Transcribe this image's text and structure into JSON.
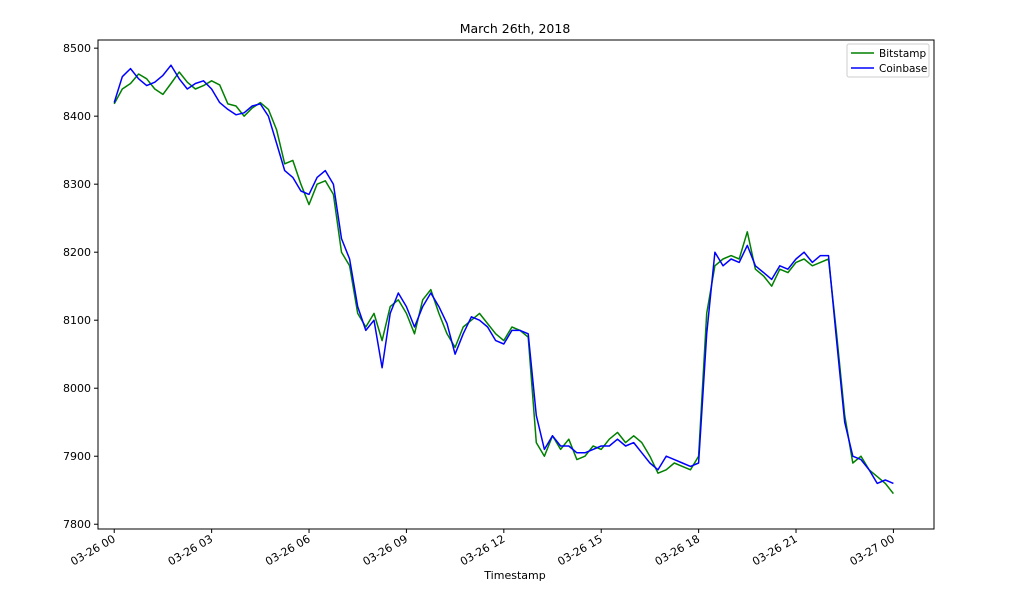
{
  "chart_data": {
    "type": "line",
    "title": "March 26th, 2018",
    "xlabel": "Timestamp",
    "ylabel": "",
    "xlim_hours": [
      -0.5,
      25.25
    ],
    "ylim": [
      7793,
      8512
    ],
    "grid": false,
    "legend_position": "top-right",
    "x_tick_hours": [
      0,
      3,
      6,
      9,
      12,
      15,
      18,
      21,
      24
    ],
    "x_tick_labels": [
      "03-26 00",
      "03-26 03",
      "03-26 06",
      "03-26 09",
      "03-26 12",
      "03-26 15",
      "03-26 18",
      "03-26 21",
      "03-27 00"
    ],
    "y_ticks": [
      7800,
      7900,
      8000,
      8100,
      8200,
      8300,
      8400,
      8500
    ],
    "series": [
      {
        "name": "Bitstamp",
        "color": "#008000",
        "x_hours": [
          0.0,
          0.25,
          0.5,
          0.75,
          1.0,
          1.25,
          1.5,
          1.75,
          2.0,
          2.25,
          2.5,
          2.75,
          3.0,
          3.25,
          3.5,
          3.75,
          4.0,
          4.25,
          4.5,
          4.75,
          5.0,
          5.25,
          5.5,
          5.75,
          6.0,
          6.25,
          6.5,
          6.75,
          7.0,
          7.25,
          7.5,
          7.75,
          8.0,
          8.25,
          8.5,
          8.75,
          9.0,
          9.25,
          9.5,
          9.75,
          10.0,
          10.25,
          10.5,
          10.75,
          11.0,
          11.25,
          11.5,
          11.75,
          12.0,
          12.25,
          12.5,
          12.75,
          13.0,
          13.25,
          13.5,
          13.75,
          14.0,
          14.25,
          14.5,
          14.75,
          15.0,
          15.25,
          15.5,
          15.75,
          16.0,
          16.25,
          16.5,
          16.75,
          17.0,
          17.25,
          17.5,
          17.75,
          18.0,
          18.25,
          18.5,
          18.75,
          19.0,
          19.25,
          19.5,
          19.75,
          20.0,
          20.25,
          20.5,
          20.75,
          21.0,
          21.25,
          21.5,
          21.75,
          22.0,
          22.25,
          22.5,
          22.75,
          23.0,
          23.25,
          23.5,
          23.75,
          24.0
        ],
        "values": [
          8418,
          8440,
          8448,
          8462,
          8455,
          8440,
          8432,
          8448,
          8465,
          8450,
          8440,
          8445,
          8452,
          8446,
          8418,
          8415,
          8400,
          8412,
          8420,
          8410,
          8380,
          8330,
          8335,
          8300,
          8270,
          8300,
          8305,
          8285,
          8200,
          8180,
          8110,
          8090,
          8110,
          8070,
          8120,
          8130,
          8110,
          8080,
          8130,
          8145,
          8110,
          8080,
          8060,
          8090,
          8100,
          8110,
          8095,
          8080,
          8070,
          8090,
          8085,
          8075,
          7920,
          7900,
          7930,
          7910,
          7925,
          7895,
          7900,
          7915,
          7910,
          7925,
          7935,
          7920,
          7930,
          7920,
          7900,
          7875,
          7880,
          7890,
          7885,
          7880,
          7900,
          8110,
          8180,
          8190,
          8195,
          8190,
          8230,
          8175,
          8165,
          8150,
          8175,
          8170,
          8185,
          8190,
          8180,
          8185,
          8190,
          8080,
          7960,
          7890,
          7900,
          7880,
          7870,
          7860,
          7845
        ]
      },
      {
        "name": "Coinbase",
        "color": "#0000ff",
        "x_hours": [
          0.0,
          0.25,
          0.5,
          0.75,
          1.0,
          1.25,
          1.5,
          1.75,
          2.0,
          2.25,
          2.5,
          2.75,
          3.0,
          3.25,
          3.5,
          3.75,
          4.0,
          4.25,
          4.5,
          4.75,
          5.0,
          5.25,
          5.5,
          5.75,
          6.0,
          6.25,
          6.5,
          6.75,
          7.0,
          7.25,
          7.5,
          7.75,
          8.0,
          8.25,
          8.5,
          8.75,
          9.0,
          9.25,
          9.5,
          9.75,
          10.0,
          10.25,
          10.5,
          10.75,
          11.0,
          11.25,
          11.5,
          11.75,
          12.0,
          12.25,
          12.5,
          12.75,
          13.0,
          13.25,
          13.5,
          13.75,
          14.0,
          14.25,
          14.5,
          14.75,
          15.0,
          15.25,
          15.5,
          15.75,
          16.0,
          16.25,
          16.5,
          16.75,
          17.0,
          17.25,
          17.5,
          17.75,
          18.0,
          18.25,
          18.5,
          18.75,
          19.0,
          19.25,
          19.5,
          19.75,
          20.0,
          20.25,
          20.5,
          20.75,
          21.0,
          21.25,
          21.5,
          21.75,
          22.0,
          22.25,
          22.5,
          22.75,
          23.0,
          23.25,
          23.5,
          23.75,
          24.0
        ],
        "values": [
          8420,
          8458,
          8470,
          8455,
          8445,
          8450,
          8460,
          8475,
          8455,
          8440,
          8448,
          8452,
          8440,
          8420,
          8410,
          8402,
          8405,
          8415,
          8418,
          8400,
          8360,
          8320,
          8310,
          8290,
          8285,
          8310,
          8320,
          8300,
          8220,
          8190,
          8120,
          8085,
          8100,
          8030,
          8110,
          8140,
          8120,
          8090,
          8120,
          8140,
          8120,
          8095,
          8050,
          8080,
          8105,
          8100,
          8090,
          8070,
          8065,
          8085,
          8085,
          8080,
          7960,
          7910,
          7930,
          7915,
          7915,
          7905,
          7905,
          7910,
          7915,
          7915,
          7925,
          7915,
          7920,
          7905,
          7890,
          7880,
          7900,
          7895,
          7890,
          7885,
          7890,
          8080,
          8200,
          8180,
          8190,
          8185,
          8210,
          8180,
          8170,
          8160,
          8180,
          8175,
          8190,
          8200,
          8185,
          8195,
          8195,
          8070,
          7950,
          7900,
          7895,
          7880,
          7860,
          7865,
          7860
        ]
      }
    ]
  }
}
